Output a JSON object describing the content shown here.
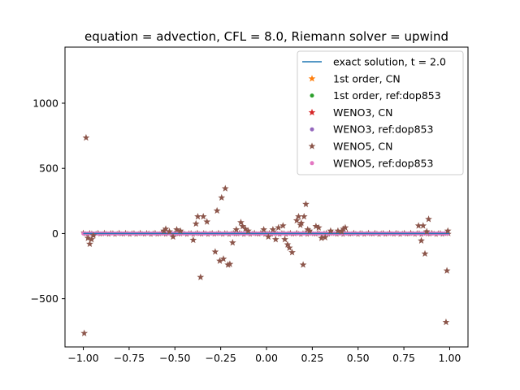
{
  "chart_data": {
    "type": "scatter",
    "title": "equation = advection, CFL = 8.0, Riemann solver = upwind",
    "xlabel": "",
    "ylabel": "",
    "xlim": [
      -1.1,
      1.1
    ],
    "ylim": [
      -870,
      1430
    ],
    "xticks": [
      -1.0,
      -0.75,
      -0.5,
      -0.25,
      0.0,
      0.25,
      0.5,
      0.75,
      1.0
    ],
    "xtick_labels": [
      "−1.00",
      "−0.75",
      "−0.50",
      "−0.25",
      "0.00",
      "0.25",
      "0.50",
      "0.75",
      "1.00"
    ],
    "yticks": [
      -500,
      0,
      500,
      1000
    ],
    "ytick_labels": [
      "−500",
      "0",
      "500",
      "1000"
    ],
    "grid": false,
    "legend_position": "top-right",
    "series": [
      {
        "name": "exact solution, t = 2.0",
        "color": "#1f77b4",
        "marker": "line",
        "x": [
          -1.0,
          1.0
        ],
        "y": [
          0,
          0
        ]
      },
      {
        "name": "1st order, CN",
        "color": "#ff7f0e",
        "marker": "star",
        "x": [
          -1.0,
          1.0
        ],
        "y": [
          0,
          0
        ]
      },
      {
        "name": "1st order, ref:dop853",
        "color": "#2ca02c",
        "marker": "dot",
        "x": [
          -1.0,
          1.0
        ],
        "y": [
          0,
          0
        ]
      },
      {
        "name": "WENO3, CN",
        "color": "#d62728",
        "marker": "star",
        "x": [
          -1.0,
          1.0
        ],
        "y": [
          0,
          0
        ]
      },
      {
        "name": "WENO3, ref:dop853",
        "color": "#9467bd",
        "marker": "dot",
        "x": [
          -1.0,
          1.0
        ],
        "y": [
          0,
          0
        ]
      },
      {
        "name": "WENO5, CN",
        "color": "#8c564b",
        "marker": "star",
        "x": [
          -0.995,
          -0.985,
          -0.975,
          -0.965,
          -0.955,
          -0.945,
          -0.56,
          -0.55,
          -0.53,
          -0.51,
          -0.49,
          -0.47,
          -0.4,
          -0.385,
          -0.375,
          -0.36,
          -0.345,
          -0.325,
          -0.28,
          -0.27,
          -0.255,
          -0.245,
          -0.235,
          -0.225,
          -0.21,
          -0.2,
          -0.185,
          -0.165,
          -0.14,
          -0.13,
          -0.115,
          -0.1,
          -0.015,
          0.01,
          0.035,
          0.05,
          0.065,
          0.09,
          0.1,
          0.115,
          0.125,
          0.14,
          0.165,
          0.175,
          0.185,
          0.19,
          0.2,
          0.205,
          0.215,
          0.225,
          0.235,
          0.27,
          0.285,
          0.3,
          0.32,
          0.35,
          0.39,
          0.41,
          0.42,
          0.43,
          0.83,
          0.845,
          0.855,
          0.865,
          0.875,
          0.885,
          0.98,
          0.985,
          0.99
        ],
        "y": [
          -765,
          735,
          -35,
          -80,
          -45,
          -15,
          20,
          35,
          15,
          -25,
          30,
          20,
          -50,
          75,
          130,
          -335,
          130,
          90,
          -140,
          175,
          -210,
          275,
          -195,
          345,
          -240,
          -235,
          -70,
          30,
          85,
          55,
          35,
          20,
          30,
          -25,
          30,
          -45,
          45,
          60,
          -45,
          -85,
          -110,
          -145,
          100,
          130,
          65,
          80,
          -240,
          130,
          225,
          30,
          20,
          55,
          45,
          -35,
          -30,
          20,
          20,
          15,
          35,
          45,
          60,
          -55,
          60,
          -155,
          15,
          110,
          -680,
          -285,
          20
        ]
      },
      {
        "name": "WENO5, ref:dop853",
        "color": "#e377c2",
        "marker": "dot",
        "x": [
          -1.0,
          1.0
        ],
        "y": [
          0,
          0
        ]
      }
    ]
  }
}
